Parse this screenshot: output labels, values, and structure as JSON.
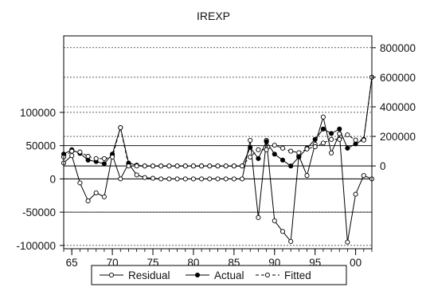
{
  "chart_data": {
    "type": "line",
    "title": "IREXP",
    "x_tick_labels": [
      "65",
      "70",
      "75",
      "80",
      "85",
      "90",
      "95",
      "00"
    ],
    "x_tick_values": [
      1965,
      1970,
      1975,
      1980,
      1985,
      1990,
      1995,
      2000
    ],
    "xlim": [
      1964,
      2002
    ],
    "left_axis": {
      "ticks": [
        100000,
        50000,
        0,
        -50000,
        -100000
      ],
      "tick_labels": [
        "100000",
        "50000",
        "0",
        "-50000",
        "-100000"
      ],
      "ylim": [
        -105000,
        215000
      ]
    },
    "right_axis": {
      "ticks": [
        0,
        200000,
        400000,
        600000,
        800000
      ],
      "tick_labels": [
        "0",
        "200000",
        "400000",
        "600000",
        "800000"
      ],
      "ylim": [
        -560000,
        880000
      ]
    },
    "residual_band": [
      -50000,
      50000
    ],
    "grid": "horizontal dashed",
    "x": [
      1964,
      1965,
      1966,
      1967,
      1968,
      1969,
      1970,
      1971,
      1972,
      1973,
      1974,
      1975,
      1976,
      1977,
      1978,
      1979,
      1980,
      1981,
      1982,
      1983,
      1984,
      1985,
      1986,
      1987,
      1988,
      1989,
      1990,
      1991,
      1992,
      1993,
      1994,
      1995,
      1996,
      1997,
      1998,
      1999,
      2000,
      2001,
      2002
    ],
    "series": [
      {
        "name": "Residual",
        "axis": "left",
        "style": "solid-open",
        "values": [
          24000,
          35000,
          -6000,
          -33000,
          -21000,
          -27000,
          36000,
          0,
          23000,
          6000,
          2000,
          1000,
          0,
          0,
          0,
          0,
          0,
          0,
          0,
          0,
          0,
          0,
          0,
          58000,
          -58000,
          58000,
          -63000,
          -79000,
          -94000,
          35000,
          5000,
          52000,
          93000,
          39000,
          68000,
          -95000,
          -23000,
          5000,
          0
        ]
      },
      {
        "name": "Actual",
        "axis": "right",
        "style": "solid-filled",
        "values": [
          80000,
          110000,
          85000,
          40000,
          30000,
          15000,
          80000,
          260000,
          20000,
          5000,
          0,
          0,
          0,
          0,
          0,
          0,
          0,
          0,
          0,
          0,
          0,
          0,
          0,
          125000,
          50000,
          165000,
          80000,
          40000,
          0,
          60000,
          120000,
          180000,
          250000,
          220000,
          250000,
          120000,
          150000,
          180000,
          600000
        ]
      },
      {
        "name": "Fitted",
        "axis": "right",
        "style": "dashed-open",
        "values": [
          60000,
          100000,
          95000,
          65000,
          50000,
          50000,
          60000,
          260000,
          0,
          0,
          0,
          0,
          0,
          0,
          0,
          0,
          0,
          0,
          0,
          0,
          0,
          0,
          0,
          60000,
          110000,
          110000,
          140000,
          120000,
          100000,
          90000,
          115000,
          130000,
          155000,
          180000,
          180000,
          210000,
          175000,
          175000,
          600000
        ]
      }
    ],
    "legend": {
      "placement": "bottom-center",
      "items": [
        "Residual",
        "Actual",
        "Fitted"
      ]
    },
    "colors": {
      "line": "#000000",
      "grid": "#000000",
      "background": "#ffffff"
    }
  }
}
